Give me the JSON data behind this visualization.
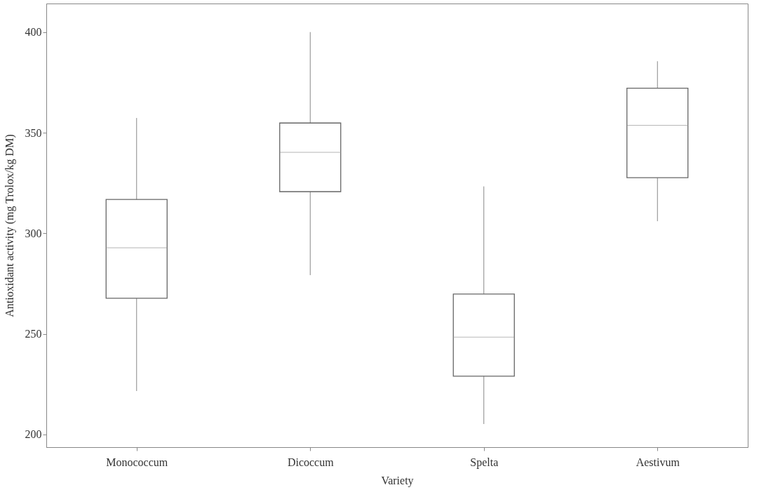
{
  "chart_data": {
    "type": "box",
    "xlabel": "Variety",
    "ylabel": "Antioxidant activity (mg Trolox/kg DM)",
    "categories": [
      "Monococcum",
      "Dicoccum",
      "Spelta",
      "Aestivum"
    ],
    "boxes": [
      {
        "low": 221.6,
        "q1": 267.7,
        "median": 292.8,
        "q3": 316.8,
        "high": 357.3
      },
      {
        "low": 279.2,
        "q1": 320.7,
        "median": 340.2,
        "q3": 354.8,
        "high": 400
      },
      {
        "low": 205.2,
        "q1": 229,
        "median": 248.4,
        "q3": 269.8,
        "high": 323.3
      },
      {
        "low": 306,
        "q1": 327.6,
        "median": 353.7,
        "q3": 372.1,
        "high": 385.5
      }
    ],
    "ylim": [
      193.7,
      414.2
    ],
    "yticks": [
      200,
      250,
      300,
      350,
      400
    ],
    "grid": false
  }
}
